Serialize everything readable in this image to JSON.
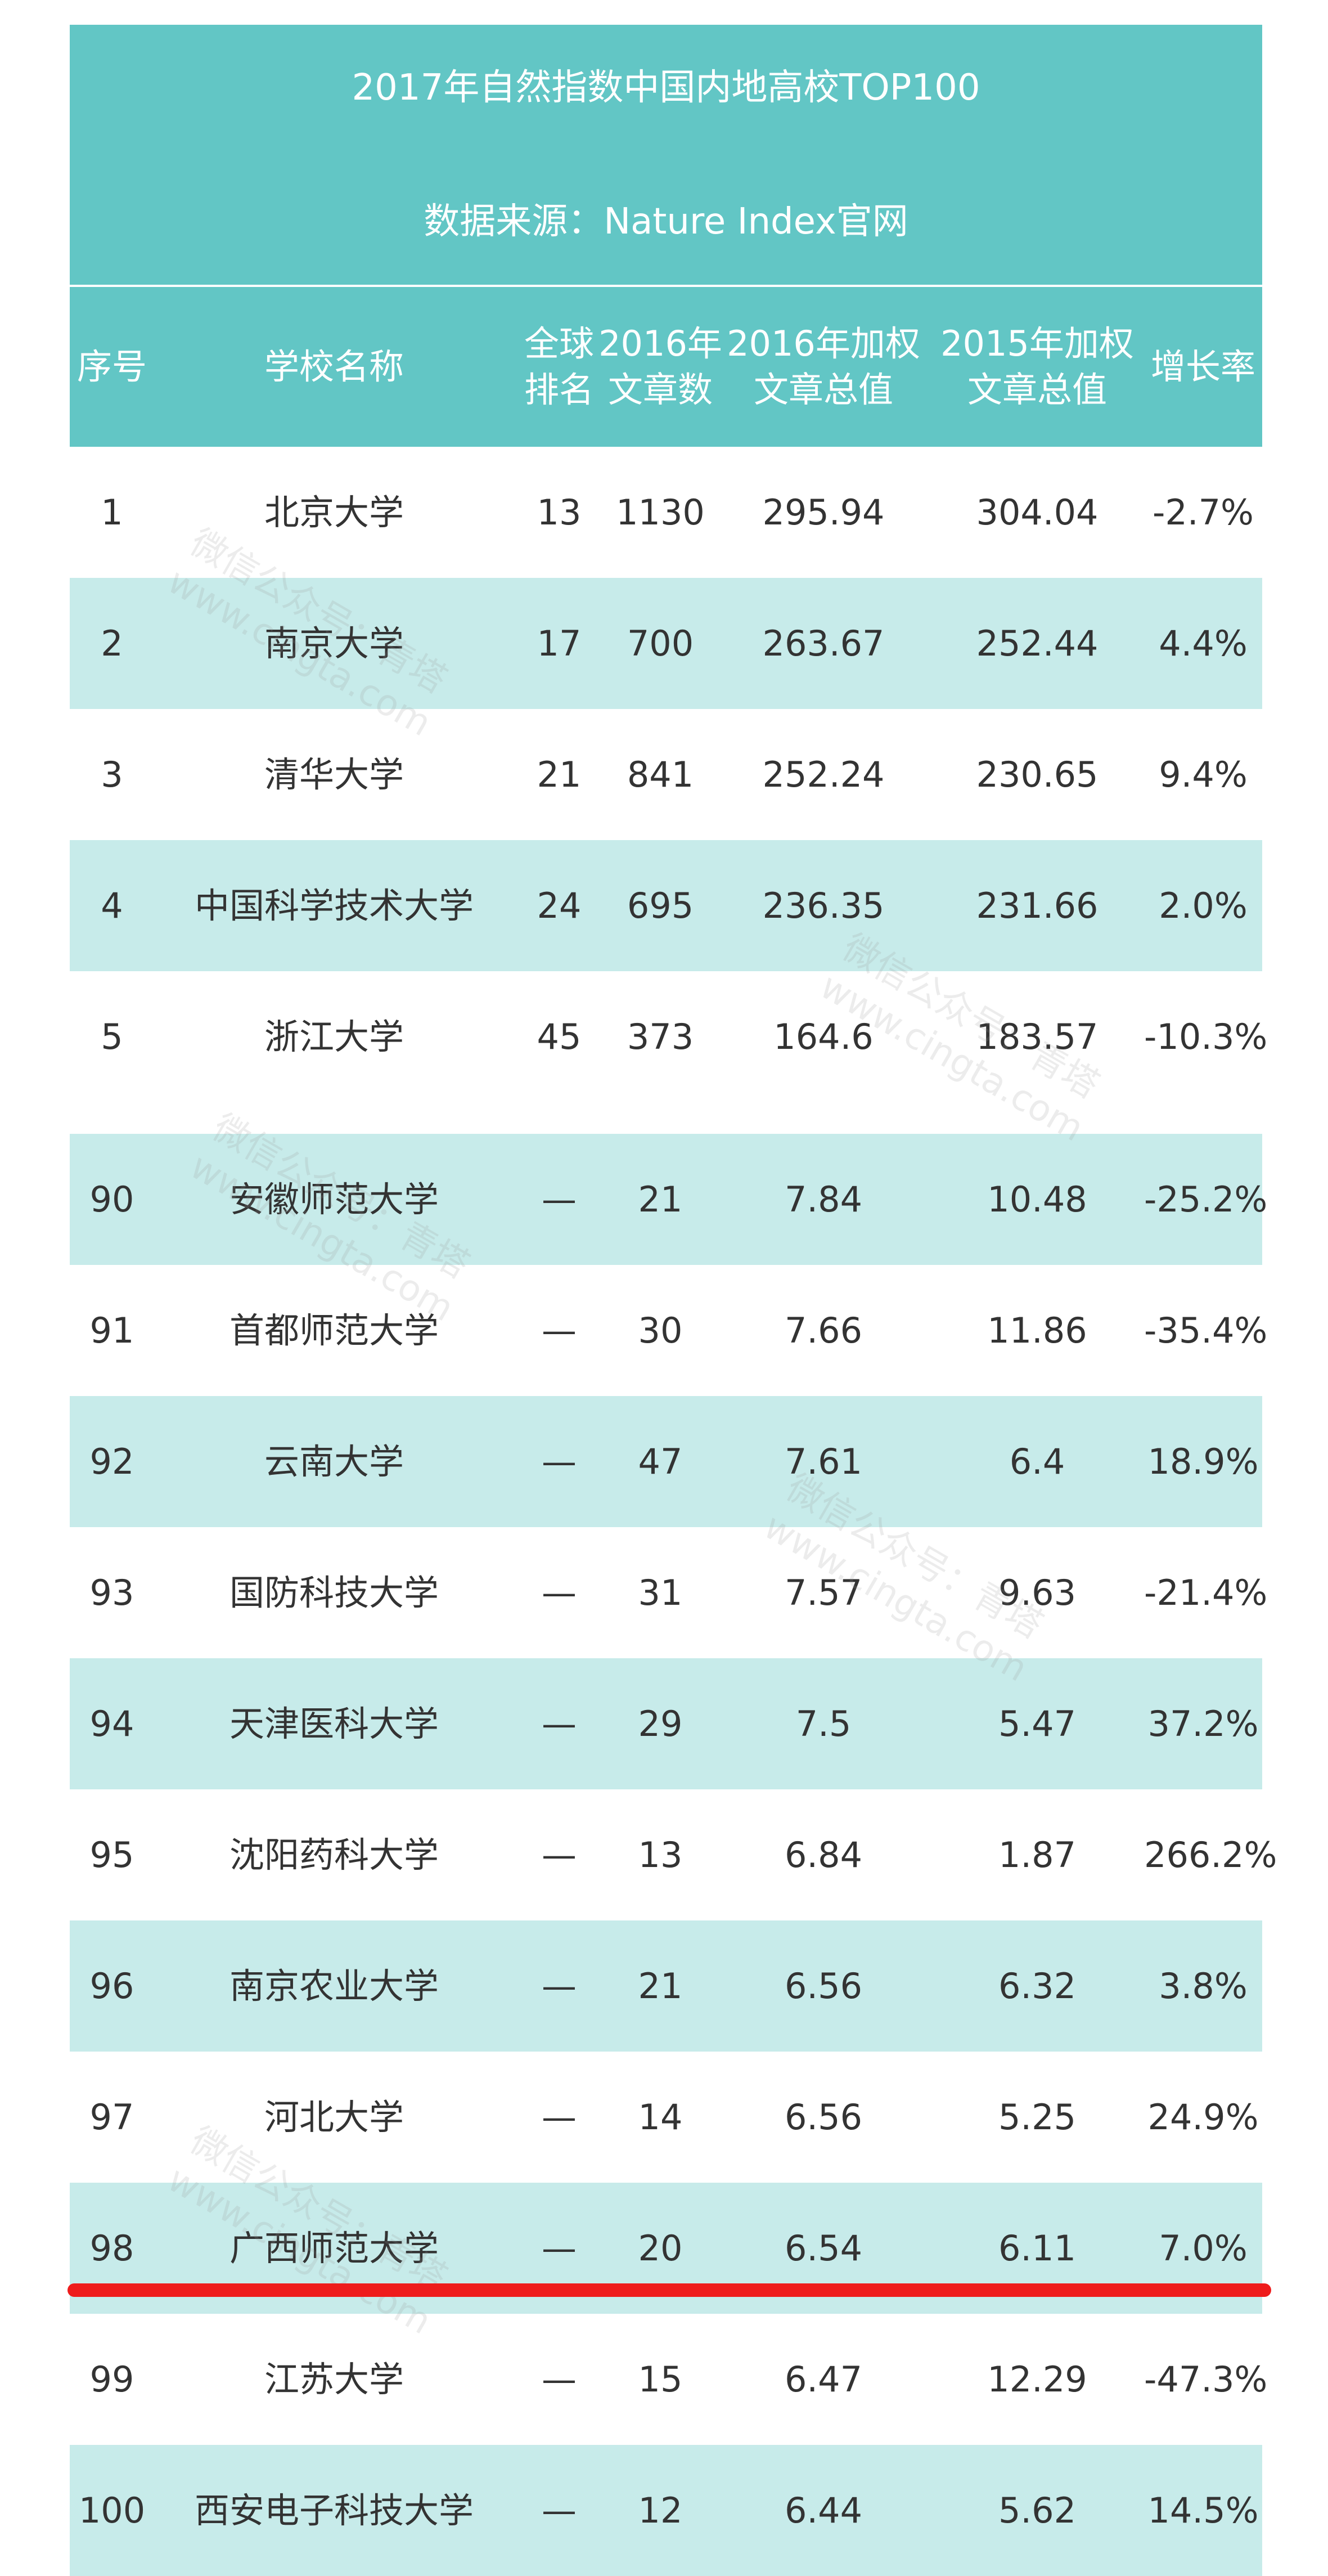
{
  "title": "2017年自然指数中国内地高校TOP100",
  "source": "数据来源：Nature Index官网",
  "headers": {
    "rank": "序号",
    "name": "学校名称",
    "global_line1": "全球",
    "global_line2": "排名",
    "articles_line1": "2016年",
    "articles_line2": "文章数",
    "wfc2016_line1": "2016年加权",
    "wfc2016_line2": "文章总值",
    "wfc2015_line1": "2015年加权",
    "wfc2015_line2": "文章总值",
    "growth": "增长率"
  },
  "rows": [
    {
      "rank": "1",
      "name": "北京大学",
      "global": "13",
      "articles": "1130",
      "wfc2016": "295.94",
      "wfc2015": "304.04",
      "growth": "-2.7%"
    },
    {
      "rank": "2",
      "name": "南京大学",
      "global": "17",
      "articles": "700",
      "wfc2016": "263.67",
      "wfc2015": "252.44",
      "growth": "4.4%"
    },
    {
      "rank": "3",
      "name": "清华大学",
      "global": "21",
      "articles": "841",
      "wfc2016": "252.24",
      "wfc2015": "230.65",
      "growth": "9.4%"
    },
    {
      "rank": "4",
      "name": "中国科学技术大学",
      "global": "24",
      "articles": "695",
      "wfc2016": "236.35",
      "wfc2015": "231.66",
      "growth": "2.0%"
    },
    {
      "rank": "5",
      "name": "浙江大学",
      "global": "45",
      "articles": "373",
      "wfc2016": "164.6",
      "wfc2015": "183.57",
      "growth": "-10.3%"
    },
    {
      "rank": "90",
      "name": "安徽师范大学",
      "global": "—",
      "articles": "21",
      "wfc2016": "7.84",
      "wfc2015": "10.48",
      "growth": "-25.2%"
    },
    {
      "rank": "91",
      "name": "首都师范大学",
      "global": "—",
      "articles": "30",
      "wfc2016": "7.66",
      "wfc2015": "11.86",
      "growth": "-35.4%"
    },
    {
      "rank": "92",
      "name": "云南大学",
      "global": "—",
      "articles": "47",
      "wfc2016": "7.61",
      "wfc2015": "6.4",
      "growth": "18.9%"
    },
    {
      "rank": "93",
      "name": "国防科技大学",
      "global": "—",
      "articles": "31",
      "wfc2016": "7.57",
      "wfc2015": "9.63",
      "growth": "-21.4%"
    },
    {
      "rank": "94",
      "name": "天津医科大学",
      "global": "—",
      "articles": "29",
      "wfc2016": "7.5",
      "wfc2015": "5.47",
      "growth": "37.2%"
    },
    {
      "rank": "95",
      "name": "沈阳药科大学",
      "global": "—",
      "articles": "13",
      "wfc2016": "6.84",
      "wfc2015": "1.87",
      "growth": "266.2%"
    },
    {
      "rank": "96",
      "name": "南京农业大学",
      "global": "—",
      "articles": "21",
      "wfc2016": "6.56",
      "wfc2015": "6.32",
      "growth": "3.8%"
    },
    {
      "rank": "97",
      "name": "河北大学",
      "global": "—",
      "articles": "14",
      "wfc2016": "6.56",
      "wfc2015": "5.25",
      "growth": "24.9%"
    },
    {
      "rank": "98",
      "name": "广西师范大学",
      "global": "—",
      "articles": "20",
      "wfc2016": "6.54",
      "wfc2015": "6.11",
      "growth": "7.0%"
    },
    {
      "rank": "99",
      "name": "江苏大学",
      "global": "—",
      "articles": "15",
      "wfc2016": "6.47",
      "wfc2015": "12.29",
      "growth": "-47.3%"
    },
    {
      "rank": "100",
      "name": "西安电子科技大学",
      "global": "—",
      "articles": "12",
      "wfc2016": "6.44",
      "wfc2015": "5.62",
      "growth": "14.5%"
    }
  ],
  "watermark": {
    "line1": "微信公众号：青塔",
    "line2": "www.cingta.com"
  },
  "colors": {
    "header": "#62c6c5",
    "stripe": "#c7ebea",
    "highlight_line": "#ee1c1c"
  }
}
